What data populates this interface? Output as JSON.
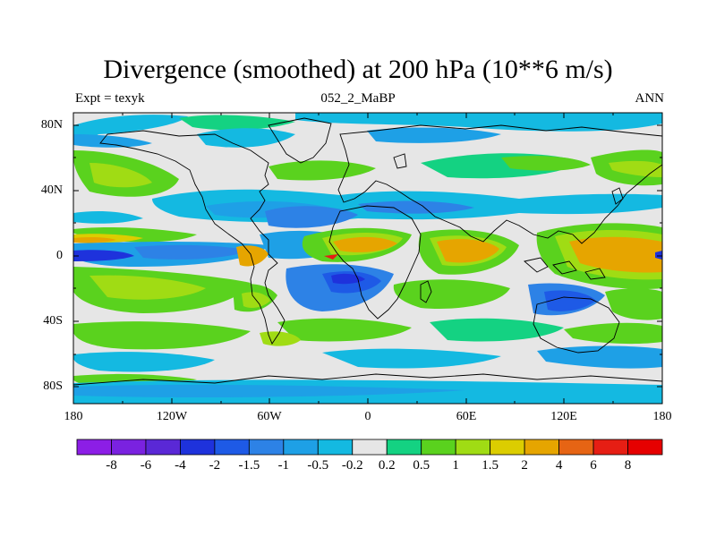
{
  "title": "Divergence (smoothed) at 200 hPa (10**6 m/s)",
  "subtitle_left": "Expt = texyk",
  "subtitle_center": "052_2_MaBP",
  "subtitle_right": "ANN",
  "lat_labels": [
    "80N",
    "40N",
    "0",
    "40S",
    "80S"
  ],
  "lon_labels": [
    "180",
    "120W",
    "60W",
    "0",
    "60E",
    "120E",
    "180"
  ],
  "colorbar": {
    "labels": [
      "-8",
      "-6",
      "-4",
      "-2",
      "-1.5",
      "-1",
      "-0.5",
      "-0.2",
      "0.2",
      "0.5",
      "1",
      "1.5",
      "2",
      "4",
      "6",
      "8"
    ],
    "colors": [
      "#8c1ee6",
      "#7a22e0",
      "#5a28d6",
      "#1e32dc",
      "#1e5ae6",
      "#2d82e6",
      "#1ea0e6",
      "#14b9e1",
      "#e6e6e6",
      "#14d282",
      "#5ad21e",
      "#a0dc14",
      "#dccd00",
      "#e6a500",
      "#e66414",
      "#e61e14",
      "#e60000"
    ]
  },
  "map_fill": {
    "background": "#e6e6e6",
    "ocean_neg": "#14b9e1",
    "mid_neg": "#1ea0e6",
    "strong_neg": "#2d82e6",
    "very_neg": "#1e5ae6",
    "pos_low": "#5ad21e",
    "pos_mid": "#a0dc14",
    "pos_high": "#e6a500",
    "pos_peak": "#e66414"
  }
}
